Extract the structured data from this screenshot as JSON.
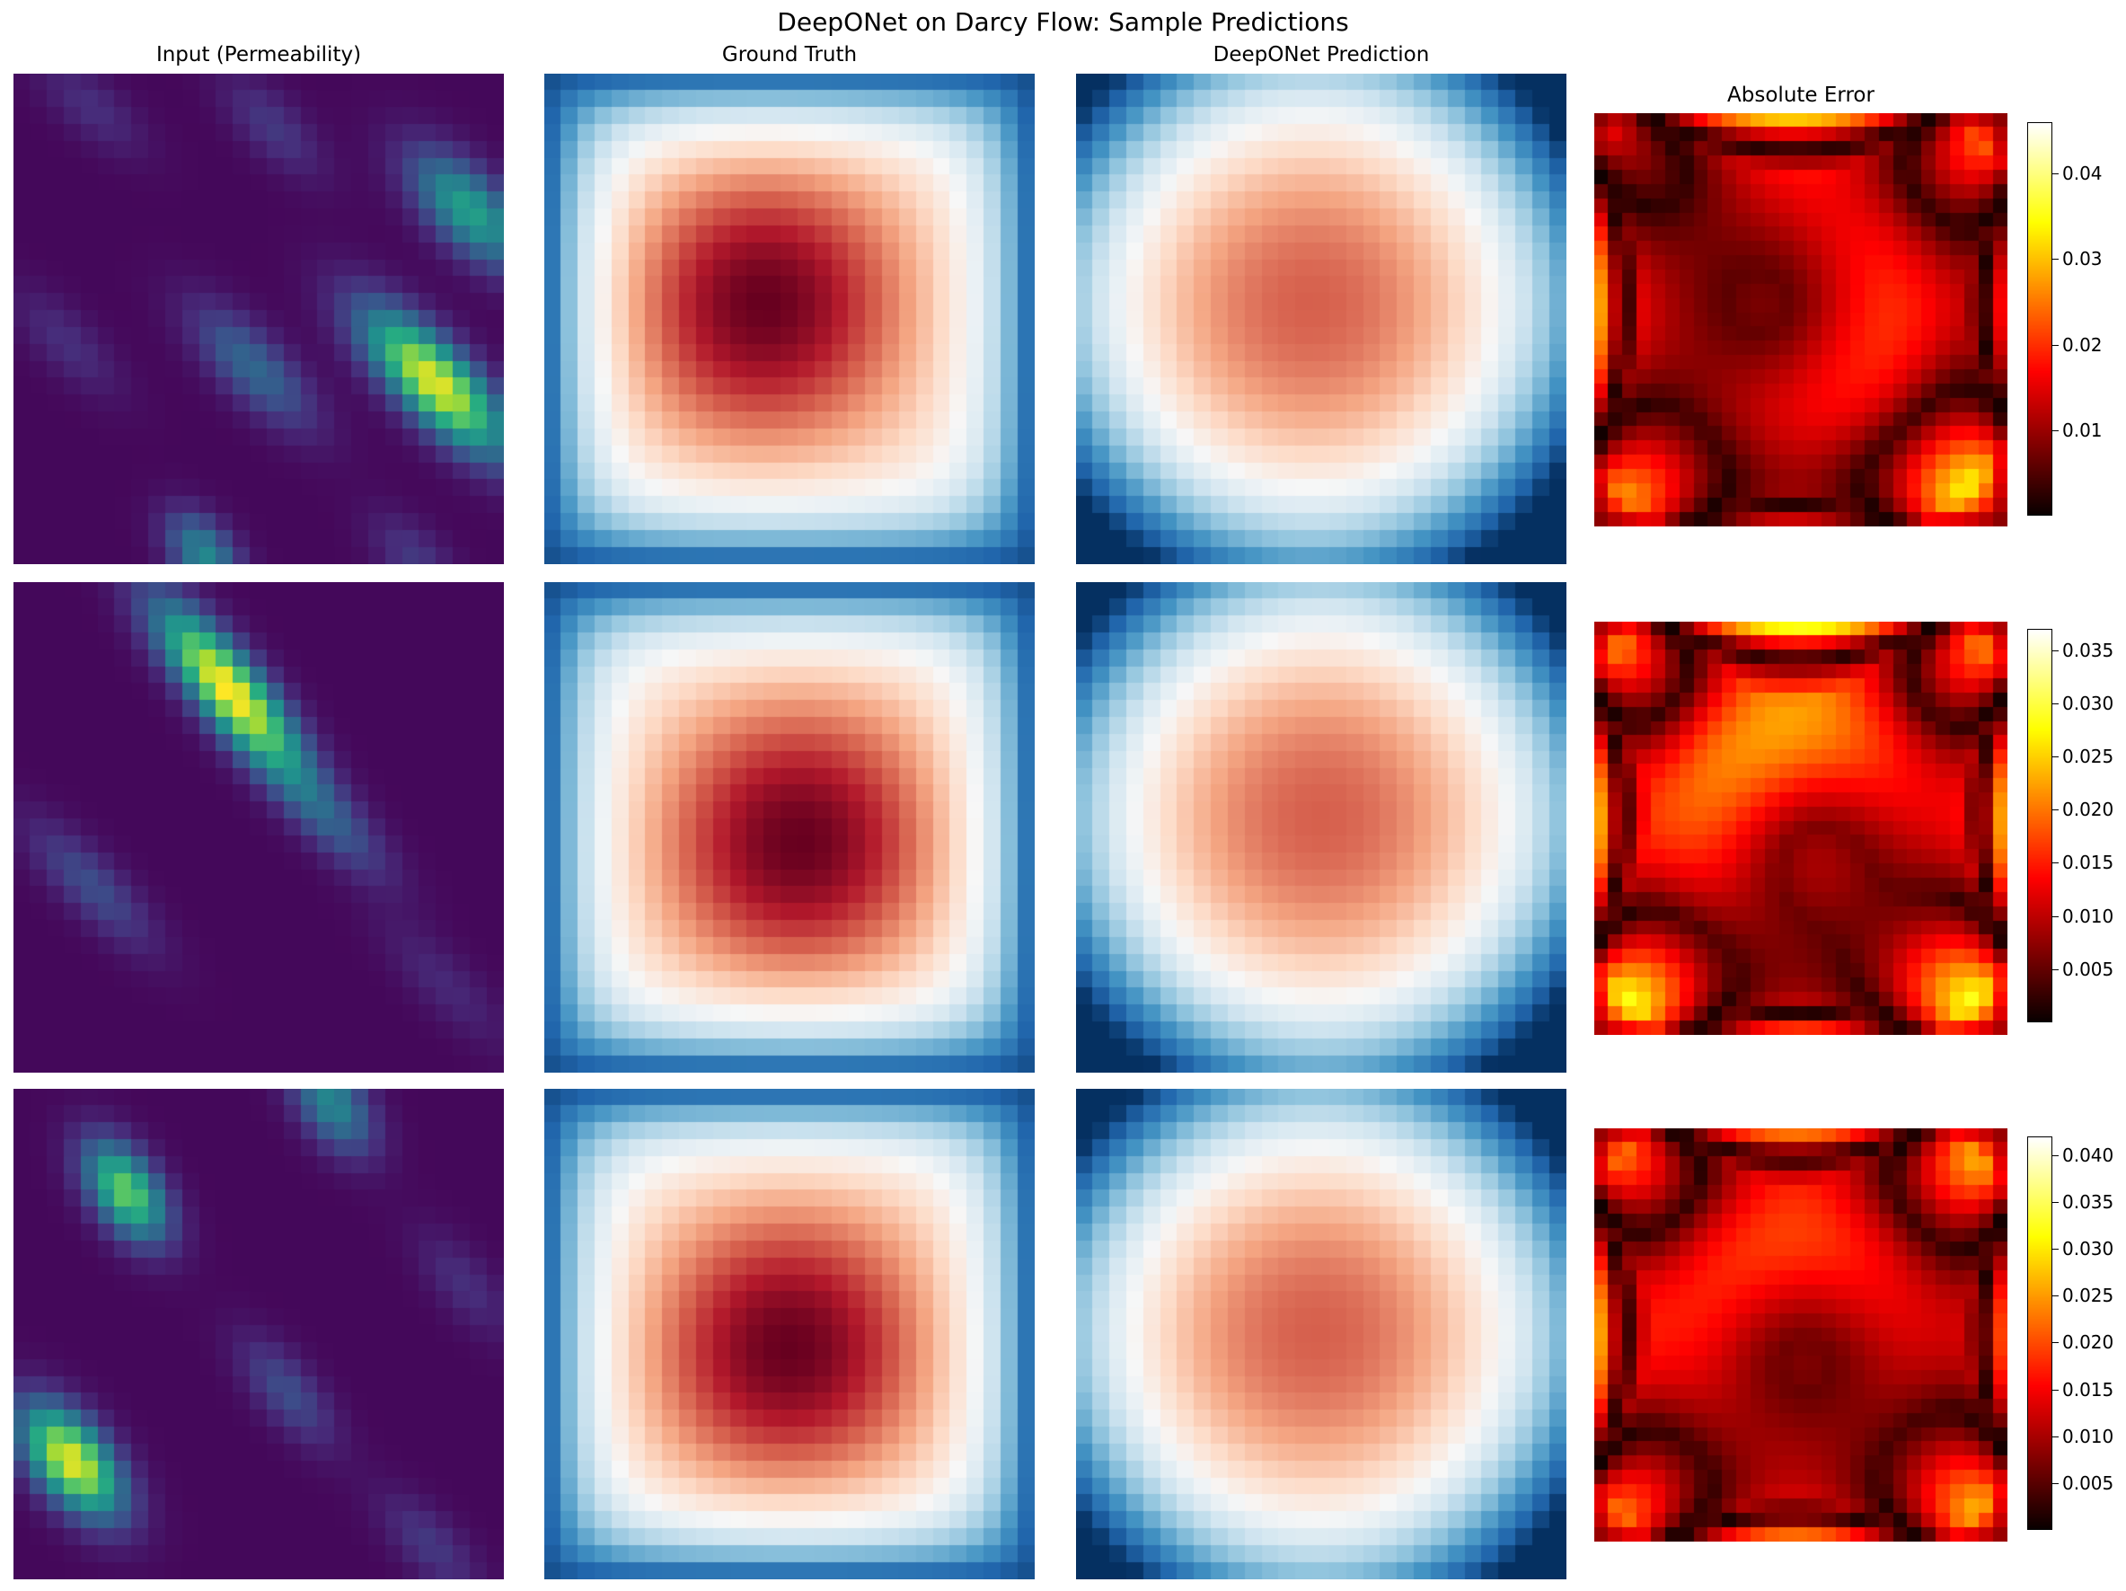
{
  "title": "DeepONet on Darcy Flow: Sample Predictions",
  "chart_data": {
    "type": "heatmap",
    "columns": [
      "Input (Permeability)",
      "Ground Truth",
      "DeepONet Prediction",
      "Absolute Error"
    ],
    "colormaps": {
      "input": "viridis",
      "ground_truth": "RdBu_r",
      "prediction": "RdBu_r",
      "error": "hot"
    },
    "grid_size": 29,
    "rows": [
      {
        "sample": 1,
        "error_colorbar": {
          "min": 0.0,
          "max": 0.046,
          "ticks": [
            "0.01",
            "0.02",
            "0.03",
            "0.04"
          ]
        },
        "permeability_streaks": [
          {
            "cx": 0.16,
            "cy": 0.07,
            "a": 0.14,
            "b": 0.04,
            "angle": -40,
            "amp": 0.12
          },
          {
            "cx": 0.53,
            "cy": 0.11,
            "a": 0.14,
            "b": 0.04,
            "angle": -45,
            "amp": 0.15
          },
          {
            "cx": 0.93,
            "cy": 0.28,
            "a": 0.16,
            "b": 0.05,
            "angle": -45,
            "amp": 0.55
          },
          {
            "cx": 0.49,
            "cy": 0.6,
            "a": 0.17,
            "b": 0.045,
            "angle": -45,
            "amp": 0.32
          },
          {
            "cx": 0.86,
            "cy": 0.63,
            "a": 0.2,
            "b": 0.05,
            "angle": -45,
            "amp": 0.95
          },
          {
            "cx": 0.11,
            "cy": 0.55,
            "a": 0.15,
            "b": 0.04,
            "angle": -45,
            "amp": 0.12
          },
          {
            "cx": 0.39,
            "cy": 0.98,
            "a": 0.1,
            "b": 0.04,
            "angle": -50,
            "amp": 0.45
          },
          {
            "cx": 0.82,
            "cy": 0.99,
            "a": 0.12,
            "b": 0.04,
            "angle": -45,
            "amp": 0.15
          }
        ],
        "gt_peak": {
          "x": 0.45,
          "y": 0.47
        },
        "pred_peak": {
          "x": 0.48,
          "y": 0.47
        },
        "error_peak": 0.03
      },
      {
        "sample": 2,
        "error_colorbar": {
          "min": 0.0,
          "max": 0.037,
          "ticks": [
            "0.005",
            "0.010",
            "0.015",
            "0.020",
            "0.025",
            "0.030",
            "0.035"
          ]
        },
        "permeability_streaks": [
          {
            "cx": 0.44,
            "cy": 0.22,
            "a": 0.22,
            "b": 0.045,
            "angle": -50,
            "amp": 1.0
          },
          {
            "cx": 0.16,
            "cy": 0.62,
            "a": 0.18,
            "b": 0.04,
            "angle": -45,
            "amp": 0.22
          },
          {
            "cx": 0.64,
            "cy": 0.48,
            "a": 0.18,
            "b": 0.04,
            "angle": -45,
            "amp": 0.25
          },
          {
            "cx": 0.88,
            "cy": 0.82,
            "a": 0.18,
            "b": 0.04,
            "angle": -45,
            "amp": 0.1
          }
        ],
        "gt_peak": {
          "x": 0.52,
          "y": 0.53
        },
        "pred_peak": {
          "x": 0.5,
          "y": 0.48
        },
        "error_peak": 0.034
      },
      {
        "sample": 3,
        "error_colorbar": {
          "min": 0.0,
          "max": 0.042,
          "ticks": [
            "0.005",
            "0.010",
            "0.015",
            "0.020",
            "0.025",
            "0.030",
            "0.035",
            "0.040"
          ]
        },
        "permeability_streaks": [
          {
            "cx": 0.23,
            "cy": 0.21,
            "a": 0.12,
            "b": 0.045,
            "angle": -55,
            "amp": 0.75
          },
          {
            "cx": 0.65,
            "cy": 0.03,
            "a": 0.12,
            "b": 0.045,
            "angle": -55,
            "amp": 0.45
          },
          {
            "cx": 0.12,
            "cy": 0.76,
            "a": 0.14,
            "b": 0.05,
            "angle": -50,
            "amp": 0.95
          },
          {
            "cx": 0.56,
            "cy": 0.62,
            "a": 0.14,
            "b": 0.04,
            "angle": -50,
            "amp": 0.22
          },
          {
            "cx": 0.92,
            "cy": 0.4,
            "a": 0.14,
            "b": 0.04,
            "angle": -50,
            "amp": 0.12
          },
          {
            "cx": 0.85,
            "cy": 0.93,
            "a": 0.14,
            "b": 0.04,
            "angle": -45,
            "amp": 0.15
          }
        ],
        "gt_peak": {
          "x": 0.5,
          "y": 0.53
        },
        "pred_peak": {
          "x": 0.49,
          "y": 0.5
        },
        "error_peak": 0.026
      }
    ]
  }
}
